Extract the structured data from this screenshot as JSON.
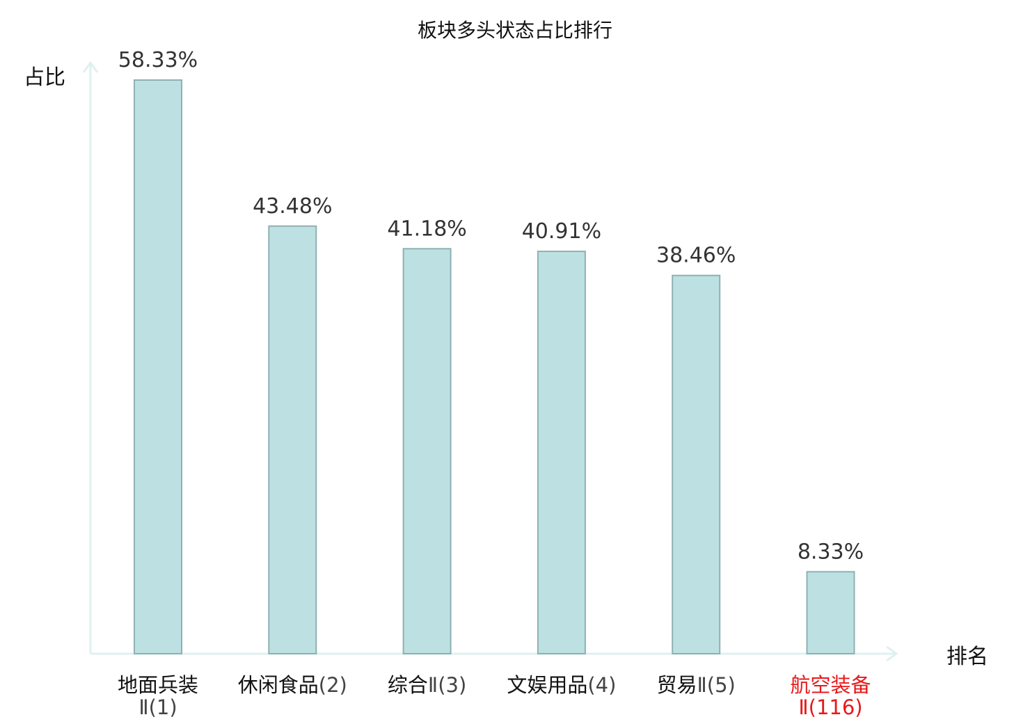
{
  "chart_data": {
    "type": "bar",
    "title": "板块多头状态占比排行",
    "ylabel": "占比",
    "xlabel": "排名",
    "ylim": [
      0,
      60
    ],
    "categories": [
      {
        "name": "地面兵装",
        "suffix": "Ⅱ(1)",
        "highlight": false
      },
      {
        "name": "休闲食品",
        "suffix": "(2)",
        "highlight": false
      },
      {
        "name": "综合",
        "suffix": "Ⅱ(3)",
        "highlight": false
      },
      {
        "name": "文娱用品",
        "suffix": "(4)",
        "highlight": false
      },
      {
        "name": "贸易",
        "suffix": "Ⅱ(5)",
        "highlight": false
      },
      {
        "name": "航空装备",
        "suffix": "Ⅱ(116)",
        "highlight": true
      }
    ],
    "values": [
      58.33,
      43.48,
      41.18,
      40.91,
      38.46,
      8.33
    ],
    "value_labels": [
      "58.33%",
      "43.48%",
      "41.18%",
      "40.91%",
      "38.46%",
      "8.33%"
    ],
    "colors": {
      "bar_fill": "#bde1e3",
      "bar_stroke": "#8fb0b2",
      "axis": "#dff1ef",
      "highlight": "#e8191a",
      "text": "#111111",
      "value_text": "#333333"
    }
  }
}
